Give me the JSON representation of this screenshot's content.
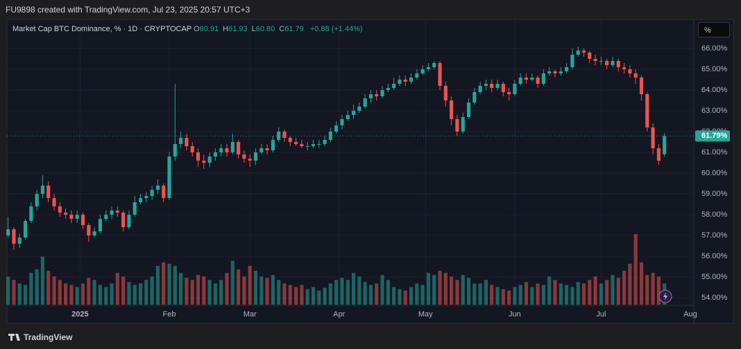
{
  "header": "FU9898 created with TradingView.com, Jul 23, 2025 20:57 UTC+3",
  "legend": {
    "name": "Market Cap BTC Dominance, % · 1D · CRYPTOCAP",
    "fields": [
      {
        "label": "O",
        "value": "60.91"
      },
      {
        "label": "H",
        "value": "61.93"
      },
      {
        "label": "L",
        "value": "60.80"
      },
      {
        "label": "C",
        "value": "61.79"
      }
    ],
    "change": "+0.88 (+1.44%)"
  },
  "scale_button": "%",
  "logo": "TradingView",
  "chart_data": {
    "type": "candlestick",
    "up_color": "#26a69a",
    "down_color": "#ef5350",
    "volume_up_color": "rgba(38,166,154,0.55)",
    "volume_down_color": "rgba(239,83,80,0.55)",
    "grid": true,
    "last_price_label": "61.79%",
    "xlim": [
      -0.2,
      119.1
    ],
    "xticks": [
      {
        "value": 12.5,
        "label": "2025"
      },
      {
        "value": 28,
        "label": "Feb"
      },
      {
        "value": 42,
        "label": "Mar"
      },
      {
        "value": 57.5,
        "label": "Apr"
      },
      {
        "value": 72.5,
        "label": "May"
      },
      {
        "value": 88,
        "label": "Jun"
      },
      {
        "value": 103,
        "label": "Jul"
      },
      {
        "value": 118.5,
        "label": "Aug"
      }
    ],
    "ylim": [
      53.67,
      67.4
    ],
    "yticks": [
      {
        "value": 54,
        "label": "54.00%"
      },
      {
        "value": 55,
        "label": "55.00%"
      },
      {
        "value": 56,
        "label": "56.00%"
      },
      {
        "value": 57,
        "label": "57.00%"
      },
      {
        "value": 58,
        "label": "58.00%"
      },
      {
        "value": 59,
        "label": "59.00%"
      },
      {
        "value": 60,
        "label": "60.00%"
      },
      {
        "value": 61,
        "label": "61.00%"
      },
      {
        "value": 62,
        "label": "62.00%"
      },
      {
        "value": 63,
        "label": "63.00%"
      },
      {
        "value": 64,
        "label": "64.00%"
      },
      {
        "value": 65,
        "label": "65.00%"
      },
      {
        "value": 66,
        "label": "66.00%"
      }
    ],
    "vlim": [
      0,
      100
    ],
    "open": [
      57.0,
      57.3,
      56.6,
      56.9,
      57.7,
      58.4,
      59.0,
      59.4,
      58.8,
      58.4,
      58.1,
      58.0,
      57.8,
      58.0,
      57.5,
      57.0,
      57.2,
      57.8,
      58.0,
      58.2,
      58.1,
      57.4,
      58.0,
      58.6,
      58.8,
      58.9,
      59.2,
      59.4,
      58.8,
      60.8,
      61.4,
      61.7,
      61.3,
      61.0,
      60.6,
      60.5,
      60.8,
      61.0,
      61.2,
      61.0,
      61.5,
      60.9,
      60.7,
      60.6,
      61.0,
      61.2,
      61.1,
      61.6,
      62.0,
      61.7,
      61.5,
      61.4,
      61.3,
      61.3,
      61.4,
      61.4,
      61.6,
      62.0,
      62.3,
      62.6,
      62.8,
      63.0,
      63.2,
      63.6,
      63.8,
      63.7,
      64.0,
      64.1,
      64.3,
      64.5,
      64.4,
      64.6,
      64.8,
      65.0,
      65.1,
      65.3,
      64.2,
      63.5,
      62.6,
      62.0,
      62.7,
      63.4,
      63.9,
      64.2,
      64.3,
      64.1,
      64.3,
      63.9,
      63.8,
      64.3,
      64.6,
      64.5,
      64.6,
      64.3,
      64.8,
      64.9,
      64.8,
      64.9,
      65.1,
      65.7,
      65.9,
      65.8,
      65.5,
      65.4,
      65.4,
      65.2,
      65.4,
      65.1,
      65.0,
      64.8,
      64.6,
      63.8,
      62.2,
      61.2,
      60.91
    ],
    "high": [
      57.9,
      57.4,
      57.1,
      57.8,
      58.6,
      59.2,
      59.9,
      59.6,
      59.0,
      58.6,
      58.3,
      58.2,
      58.2,
      58.1,
      57.6,
      57.4,
      58.0,
      58.2,
      58.4,
      58.4,
      58.2,
      58.2,
      58.9,
      59.0,
      59.1,
      59.4,
      59.7,
      59.5,
      61.0,
      64.3,
      62.0,
      61.9,
      61.5,
      61.2,
      60.9,
      61.0,
      61.2,
      61.4,
      61.4,
      61.9,
      61.6,
      61.1,
      60.9,
      61.2,
      61.4,
      61.4,
      61.8,
      62.2,
      62.1,
      61.8,
      61.7,
      61.6,
      61.5,
      61.6,
      61.6,
      61.8,
      62.2,
      62.5,
      62.8,
      63.0,
      63.3,
      63.4,
      63.8,
      64.0,
      64.0,
      64.2,
      64.3,
      64.6,
      64.7,
      64.7,
      64.8,
      65.0,
      65.2,
      65.3,
      65.4,
      65.4,
      64.4,
      63.7,
      62.8,
      62.9,
      63.6,
      64.1,
      64.4,
      64.5,
      64.5,
      64.5,
      64.4,
      64.1,
      64.5,
      64.8,
      64.8,
      64.8,
      64.7,
      65.0,
      65.1,
      65.0,
      65.1,
      65.3,
      66.0,
      66.1,
      66.0,
      65.9,
      65.7,
      65.6,
      65.5,
      65.6,
      65.5,
      65.3,
      65.2,
      65.0,
      64.7,
      63.9,
      62.4,
      61.4,
      61.93
    ],
    "low": [
      56.9,
      56.3,
      56.4,
      56.8,
      57.6,
      58.2,
      58.8,
      58.6,
      58.2,
      57.9,
      57.8,
      57.6,
      57.6,
      57.3,
      56.7,
      56.9,
      57.1,
      57.7,
      57.8,
      57.9,
      57.2,
      57.3,
      57.9,
      58.5,
      58.6,
      58.7,
      59.0,
      58.6,
      58.7,
      60.6,
      61.2,
      61.1,
      60.8,
      60.3,
      60.2,
      60.3,
      60.6,
      60.8,
      60.8,
      60.9,
      60.7,
      60.5,
      60.3,
      60.4,
      60.9,
      60.9,
      61.0,
      61.5,
      61.5,
      61.3,
      61.3,
      61.2,
      61.1,
      61.2,
      61.2,
      61.3,
      61.5,
      61.9,
      62.1,
      62.5,
      62.6,
      62.9,
      63.1,
      63.4,
      63.5,
      63.6,
      63.9,
      64.0,
      64.2,
      64.2,
      64.3,
      64.5,
      64.7,
      64.9,
      65.0,
      64.0,
      63.2,
      62.3,
      61.8,
      61.9,
      62.6,
      63.3,
      63.8,
      64.0,
      63.9,
      64.0,
      63.7,
      63.5,
      63.7,
      64.2,
      64.3,
      64.4,
      64.1,
      64.2,
      64.7,
      64.6,
      64.7,
      64.8,
      65.0,
      65.6,
      65.6,
      65.3,
      65.2,
      65.2,
      65.0,
      65.1,
      64.9,
      64.8,
      64.6,
      64.3,
      63.5,
      62.0,
      60.9,
      60.4,
      60.8
    ],
    "close": [
      57.3,
      56.6,
      56.9,
      57.7,
      58.4,
      59.0,
      59.4,
      58.8,
      58.4,
      58.1,
      58.0,
      57.8,
      58.0,
      57.5,
      57.0,
      57.2,
      57.8,
      58.0,
      58.2,
      58.1,
      57.4,
      58.0,
      58.6,
      58.8,
      58.9,
      59.2,
      59.4,
      58.8,
      60.8,
      61.4,
      61.7,
      61.3,
      61.0,
      60.6,
      60.5,
      60.8,
      61.0,
      61.2,
      61.0,
      61.5,
      60.9,
      60.7,
      60.6,
      61.0,
      61.2,
      61.1,
      61.6,
      62.0,
      61.7,
      61.5,
      61.4,
      61.3,
      61.3,
      61.4,
      61.4,
      61.6,
      62.0,
      62.3,
      62.6,
      62.8,
      63.0,
      63.2,
      63.6,
      63.8,
      63.7,
      64.0,
      64.1,
      64.3,
      64.5,
      64.4,
      64.6,
      64.8,
      65.0,
      65.1,
      65.3,
      64.2,
      63.5,
      62.6,
      62.0,
      62.7,
      63.4,
      63.9,
      64.2,
      64.3,
      64.1,
      64.3,
      63.9,
      63.8,
      64.3,
      64.6,
      64.5,
      64.6,
      64.3,
      64.8,
      64.9,
      64.8,
      64.9,
      65.1,
      65.7,
      65.9,
      65.8,
      65.5,
      65.4,
      65.4,
      65.2,
      65.4,
      65.1,
      65.0,
      64.8,
      64.6,
      63.8,
      62.2,
      61.2,
      60.6,
      61.79
    ],
    "volume": [
      40,
      35,
      30,
      28,
      45,
      50,
      68,
      48,
      40,
      35,
      30,
      28,
      25,
      30,
      38,
      35,
      28,
      25,
      30,
      45,
      40,
      32,
      28,
      30,
      35,
      40,
      55,
      60,
      58,
      55,
      45,
      38,
      35,
      42,
      40,
      35,
      30,
      35,
      45,
      62,
      50,
      40,
      55,
      48,
      40,
      38,
      42,
      35,
      30,
      28,
      25,
      28,
      22,
      25,
      20,
      24,
      30,
      35,
      38,
      35,
      45,
      40,
      32,
      28,
      30,
      42,
      35,
      25,
      22,
      20,
      25,
      30,
      28,
      45,
      42,
      48,
      45,
      40,
      35,
      42,
      38,
      30,
      30,
      35,
      28,
      25,
      22,
      20,
      25,
      28,
      32,
      25,
      30,
      28,
      40,
      35,
      30,
      28,
      25,
      32,
      30,
      35,
      40,
      30,
      35,
      42,
      38,
      48,
      58,
      100,
      60,
      42,
      45,
      40,
      30
    ]
  }
}
